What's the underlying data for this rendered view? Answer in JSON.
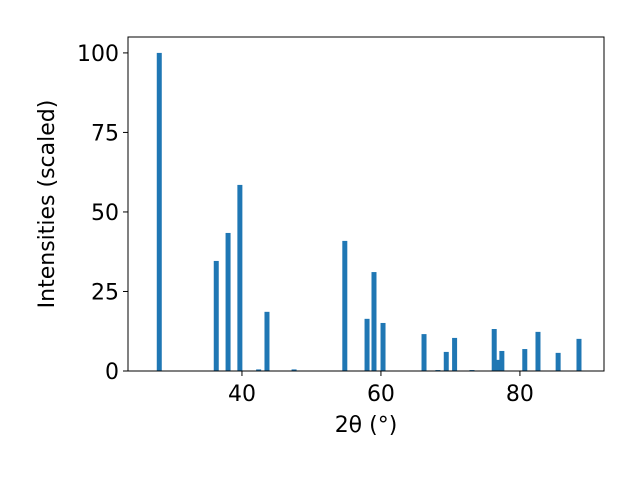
{
  "chart_data": {
    "type": "bar",
    "xlabel": "2θ (°)",
    "ylabel": "Intensities (scaled)",
    "x": [
      28.1,
      36.3,
      38.0,
      39.7,
      42.4,
      43.6,
      47.5,
      54.8,
      58.0,
      59.0,
      60.3,
      66.2,
      68.2,
      69.4,
      70.6,
      73.1,
      76.3,
      76.8,
      77.4,
      80.7,
      82.6,
      85.5,
      88.5
    ],
    "values": [
      100,
      34.6,
      43.4,
      58.5,
      0.5,
      18.6,
      0.5,
      40.9,
      16.4,
      31.1,
      15.1,
      11.6,
      0.3,
      6.0,
      10.4,
      0.3,
      13.2,
      3.5,
      6.3,
      6.9,
      12.3,
      5.7,
      10.1
    ],
    "color": "#1f77b4",
    "xlim": [
      23.6,
      92.1
    ],
    "xticks": [
      40,
      60,
      80
    ],
    "ylim": [
      0,
      105
    ],
    "yticks": [
      0,
      25,
      50,
      75,
      100
    ]
  }
}
